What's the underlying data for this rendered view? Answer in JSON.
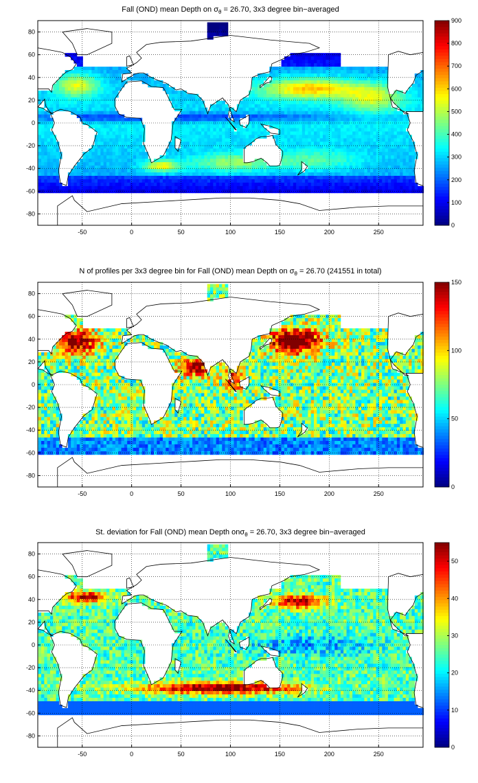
{
  "panels": [
    {
      "id": "mean",
      "title_before": "Fall (OND) mean Depth on ",
      "sigma": "σ",
      "sub": "θ",
      "title_after": " = 26.70, 3x3 degree bin−averaged",
      "colorbar_ticks": [
        "900",
        "800",
        "700",
        "600",
        "500",
        "400",
        "300",
        "200",
        "100",
        "0"
      ],
      "vmax": 900
    },
    {
      "id": "count",
      "title_before": "N of profiles per 3x3 degree bin for Fall (OND) mean Depth on ",
      "sigma": "σ",
      "sub": "θ",
      "title_after": " = 26.70 (241551 in total)",
      "colorbar_ticks": [
        "150",
        "100",
        "50",
        "0"
      ],
      "vmax": 150
    },
    {
      "id": "std",
      "title_before": "St. deviation for Fall (OND) mean Depth on",
      "sigma": "σ",
      "sub": "θ",
      "title_after": " = 26.70, 3x3 degree bin−averaged",
      "colorbar_ticks": [
        "50",
        "40",
        "30",
        "20",
        "10",
        "0"
      ],
      "vmax": 55
    }
  ],
  "axes": {
    "x_ticks": [
      "-50",
      "0",
      "50",
      "100",
      "150",
      "200",
      "250"
    ],
    "y_ticks": [
      "80",
      "60",
      "40",
      "20",
      "0",
      "-20",
      "-40",
      "-60",
      "-80"
    ],
    "lon_range": [
      -95,
      295
    ],
    "lat_range": [
      -90,
      90
    ]
  },
  "colormap": "jet"
}
